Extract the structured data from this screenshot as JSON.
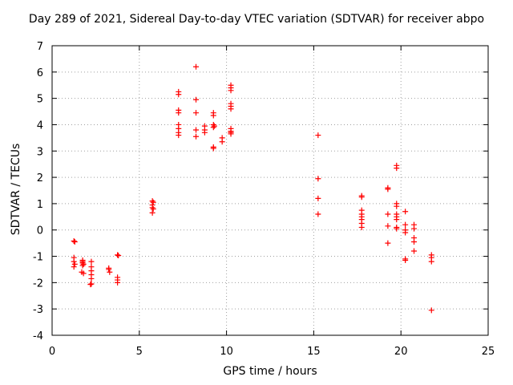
{
  "chart_data": {
    "type": "scatter",
    "title": "Day 289 of 2021, Sidereal Day-to-day VTEC variation (SDTVAR) for receiver abpo",
    "xlabel": "GPS time / hours",
    "ylabel": "SDTVAR / TECUs",
    "xlim": [
      0,
      25
    ],
    "ylim": [
      -4,
      7
    ],
    "xticks": [
      0,
      5,
      10,
      15,
      20,
      25
    ],
    "yticks": [
      -4,
      -3,
      -2,
      -1,
      0,
      1,
      2,
      3,
      4,
      5,
      6,
      7
    ],
    "grid": true,
    "marker": "plus",
    "color": "#ff0000",
    "series": [
      {
        "name": "SDTVAR",
        "points": [
          [
            1.25,
            -0.42
          ],
          [
            1.3,
            -0.45
          ],
          [
            1.25,
            -1.05
          ],
          [
            1.25,
            -1.2
          ],
          [
            1.3,
            -1.3
          ],
          [
            1.25,
            -1.4
          ],
          [
            1.75,
            -1.2
          ],
          [
            1.75,
            -1.25
          ],
          [
            1.8,
            -1.3
          ],
          [
            1.75,
            -1.35
          ],
          [
            1.7,
            -1.6
          ],
          [
            1.8,
            -1.65
          ],
          [
            1.75,
            -1.15
          ],
          [
            2.25,
            -1.2
          ],
          [
            2.25,
            -1.4
          ],
          [
            2.25,
            -1.55
          ],
          [
            2.25,
            -1.7
          ],
          [
            2.25,
            -1.85
          ],
          [
            2.25,
            -2.05
          ],
          [
            2.2,
            -2.07
          ],
          [
            3.25,
            -1.45
          ],
          [
            3.25,
            -1.5
          ],
          [
            3.3,
            -1.6
          ],
          [
            3.75,
            -0.95
          ],
          [
            3.8,
            -0.97
          ],
          [
            3.75,
            -1.8
          ],
          [
            3.75,
            -1.9
          ],
          [
            3.75,
            -2.0
          ],
          [
            5.75,
            1.1
          ],
          [
            5.8,
            1.05
          ],
          [
            5.75,
            0.95
          ],
          [
            5.75,
            0.85
          ],
          [
            5.8,
            0.8
          ],
          [
            5.75,
            0.65
          ],
          [
            7.25,
            5.25
          ],
          [
            7.25,
            5.15
          ],
          [
            7.25,
            4.55
          ],
          [
            7.25,
            4.45
          ],
          [
            7.25,
            4.0
          ],
          [
            7.25,
            3.85
          ],
          [
            7.25,
            3.7
          ],
          [
            7.25,
            3.6
          ],
          [
            8.25,
            6.2
          ],
          [
            8.25,
            4.95
          ],
          [
            8.25,
            4.45
          ],
          [
            8.25,
            3.8
          ],
          [
            8.25,
            3.55
          ],
          [
            8.75,
            3.95
          ],
          [
            8.75,
            3.8
          ],
          [
            8.75,
            3.7
          ],
          [
            9.25,
            4.45
          ],
          [
            9.25,
            4.35
          ],
          [
            9.25,
            4.0
          ],
          [
            9.25,
            3.9
          ],
          [
            9.3,
            3.95
          ],
          [
            9.25,
            3.15
          ],
          [
            9.25,
            3.1
          ],
          [
            9.75,
            3.5
          ],
          [
            9.75,
            3.35
          ],
          [
            10.25,
            5.5
          ],
          [
            10.25,
            5.4
          ],
          [
            10.25,
            5.3
          ],
          [
            10.25,
            4.8
          ],
          [
            10.25,
            4.7
          ],
          [
            10.25,
            4.6
          ],
          [
            10.25,
            3.85
          ],
          [
            10.25,
            3.75
          ],
          [
            10.25,
            3.7
          ],
          [
            10.25,
            3.65
          ],
          [
            15.25,
            3.6
          ],
          [
            15.25,
            1.95
          ],
          [
            15.25,
            1.2
          ],
          [
            15.25,
            0.6
          ],
          [
            17.75,
            1.3
          ],
          [
            17.75,
            1.25
          ],
          [
            17.75,
            0.75
          ],
          [
            17.75,
            0.6
          ],
          [
            17.75,
            0.5
          ],
          [
            17.75,
            0.4
          ],
          [
            17.75,
            0.25
          ],
          [
            17.75,
            0.1
          ],
          [
            19.25,
            1.6
          ],
          [
            19.25,
            1.55
          ],
          [
            19.25,
            0.6
          ],
          [
            19.25,
            0.15
          ],
          [
            19.25,
            -0.5
          ],
          [
            19.75,
            2.45
          ],
          [
            19.75,
            2.35
          ],
          [
            19.75,
            1.0
          ],
          [
            19.75,
            0.9
          ],
          [
            19.75,
            0.6
          ],
          [
            19.75,
            0.5
          ],
          [
            19.75,
            0.4
          ],
          [
            19.75,
            0.1
          ],
          [
            19.75,
            0.05
          ],
          [
            20.25,
            0.7
          ],
          [
            20.25,
            0.2
          ],
          [
            20.25,
            0.0
          ],
          [
            20.25,
            -0.1
          ],
          [
            20.25,
            -1.1
          ],
          [
            20.25,
            -1.15
          ],
          [
            20.75,
            0.2
          ],
          [
            20.75,
            0.05
          ],
          [
            20.75,
            -0.3
          ],
          [
            20.75,
            -0.45
          ],
          [
            20.75,
            -0.8
          ],
          [
            21.75,
            -0.95
          ],
          [
            21.75,
            -1.05
          ],
          [
            21.75,
            -1.2
          ],
          [
            21.75,
            -3.05
          ]
        ]
      }
    ]
  }
}
